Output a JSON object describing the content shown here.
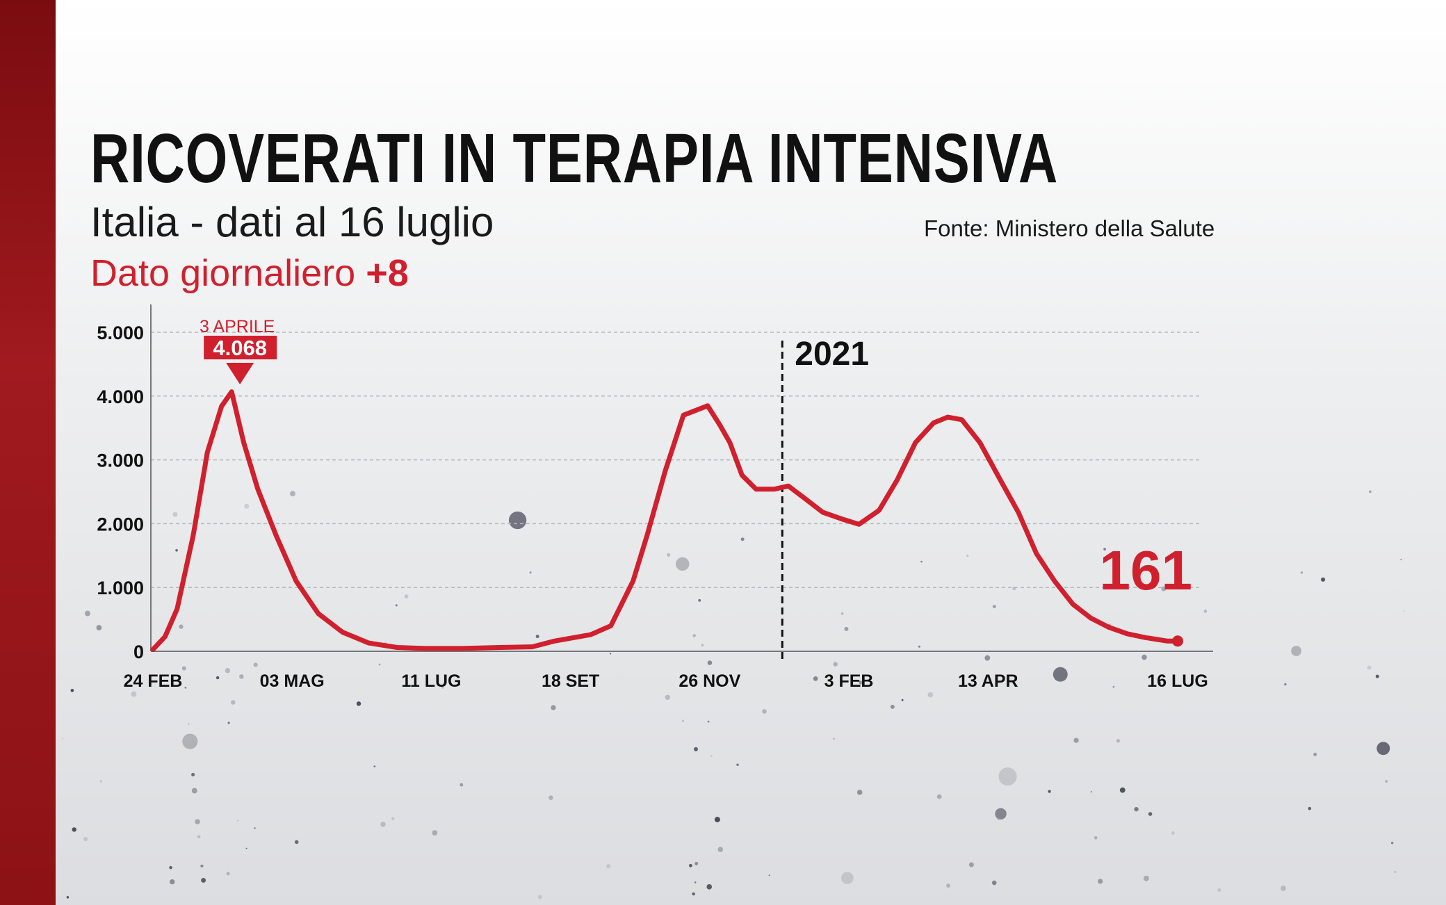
{
  "header": {
    "title": "RICOVERATI IN TERAPIA INTENSIVA",
    "subtitle": "Italia - dati al 16 luglio",
    "daily_label": "Dato giornaliero",
    "daily_value": "+8",
    "source": "Fonte: Ministero della Salute"
  },
  "colors": {
    "accent": "#d0202e",
    "text": "#111111",
    "strip": "#8c1216"
  },
  "chart_data": {
    "type": "line",
    "title": "RICOVERATI IN TERAPIA INTENSIVA",
    "xlabel": "",
    "ylabel": "",
    "xlim": [
      "2020-02-24",
      "2021-07-16"
    ],
    "ylim": [
      0,
      5000
    ],
    "grid": true,
    "yticks": [
      0,
      1000,
      2000,
      3000,
      4000,
      5000
    ],
    "ytick_labels": [
      "0",
      "1.000",
      "2.000",
      "3.000",
      "4.000",
      "5.000"
    ],
    "xticks": [
      "2020-02-24",
      "2020-05-03",
      "2020-07-11",
      "2020-09-18",
      "2020-11-26",
      "2021-02-03",
      "2021-04-13",
      "2021-07-16"
    ],
    "xtick_labels": [
      "24 FEB",
      "03 MAG",
      "11 LUG",
      "18 SET",
      "26 NOV",
      "3 FEB",
      "13 APR",
      "16 LUG"
    ],
    "year_marker": {
      "date": "2021-01-01",
      "label": "2021"
    },
    "peak_annotation": {
      "date": "2020-04-03",
      "value": 4068,
      "date_label": "3 APRILE",
      "value_label": "4.068"
    },
    "last_value": {
      "date": "2021-07-16",
      "value": 161,
      "label": "161"
    },
    "series": [
      {
        "color": "#d0202e",
        "points": [
          [
            "2020-02-24",
            27
          ],
          [
            "2020-03-01",
            230
          ],
          [
            "2020-03-07",
            665
          ],
          [
            "2020-03-15",
            1820
          ],
          [
            "2020-03-22",
            3120
          ],
          [
            "2020-03-29",
            3840
          ],
          [
            "2020-04-03",
            4068
          ],
          [
            "2020-04-09",
            3270
          ],
          [
            "2020-04-16",
            2540
          ],
          [
            "2020-04-25",
            1820
          ],
          [
            "2020-05-05",
            1100
          ],
          [
            "2020-05-16",
            590
          ],
          [
            "2020-05-28",
            300
          ],
          [
            "2020-06-10",
            130
          ],
          [
            "2020-06-24",
            60
          ],
          [
            "2020-07-08",
            45
          ],
          [
            "2020-07-26",
            45
          ],
          [
            "2020-08-14",
            60
          ],
          [
            "2020-08-30",
            70
          ],
          [
            "2020-09-10",
            160
          ],
          [
            "2020-09-28",
            260
          ],
          [
            "2020-10-08",
            400
          ],
          [
            "2020-10-19",
            1100
          ],
          [
            "2020-10-26",
            1820
          ],
          [
            "2020-11-04",
            2830
          ],
          [
            "2020-11-13",
            3700
          ],
          [
            "2020-11-25",
            3848
          ],
          [
            "2020-12-01",
            3550
          ],
          [
            "2020-12-06",
            3270
          ],
          [
            "2020-12-12",
            2760
          ],
          [
            "2020-12-19",
            2540
          ],
          [
            "2020-12-28",
            2540
          ],
          [
            "2021-01-04",
            2590
          ],
          [
            "2021-01-12",
            2400
          ],
          [
            "2021-01-21",
            2180
          ],
          [
            "2021-01-30",
            2080
          ],
          [
            "2021-02-08",
            1990
          ],
          [
            "2021-02-18",
            2210
          ],
          [
            "2021-02-27",
            2690
          ],
          [
            "2021-03-08",
            3270
          ],
          [
            "2021-03-17",
            3580
          ],
          [
            "2021-03-24",
            3670
          ],
          [
            "2021-03-31",
            3630
          ],
          [
            "2021-04-09",
            3270
          ],
          [
            "2021-04-19",
            2690
          ],
          [
            "2021-04-28",
            2180
          ],
          [
            "2021-05-07",
            1530
          ],
          [
            "2021-05-16",
            1100
          ],
          [
            "2021-05-25",
            740
          ],
          [
            "2021-06-03",
            520
          ],
          [
            "2021-06-12",
            375
          ],
          [
            "2021-06-21",
            275
          ],
          [
            "2021-06-30",
            215
          ],
          [
            "2021-07-11",
            160
          ],
          [
            "2021-07-16",
            161
          ]
        ]
      }
    ]
  }
}
